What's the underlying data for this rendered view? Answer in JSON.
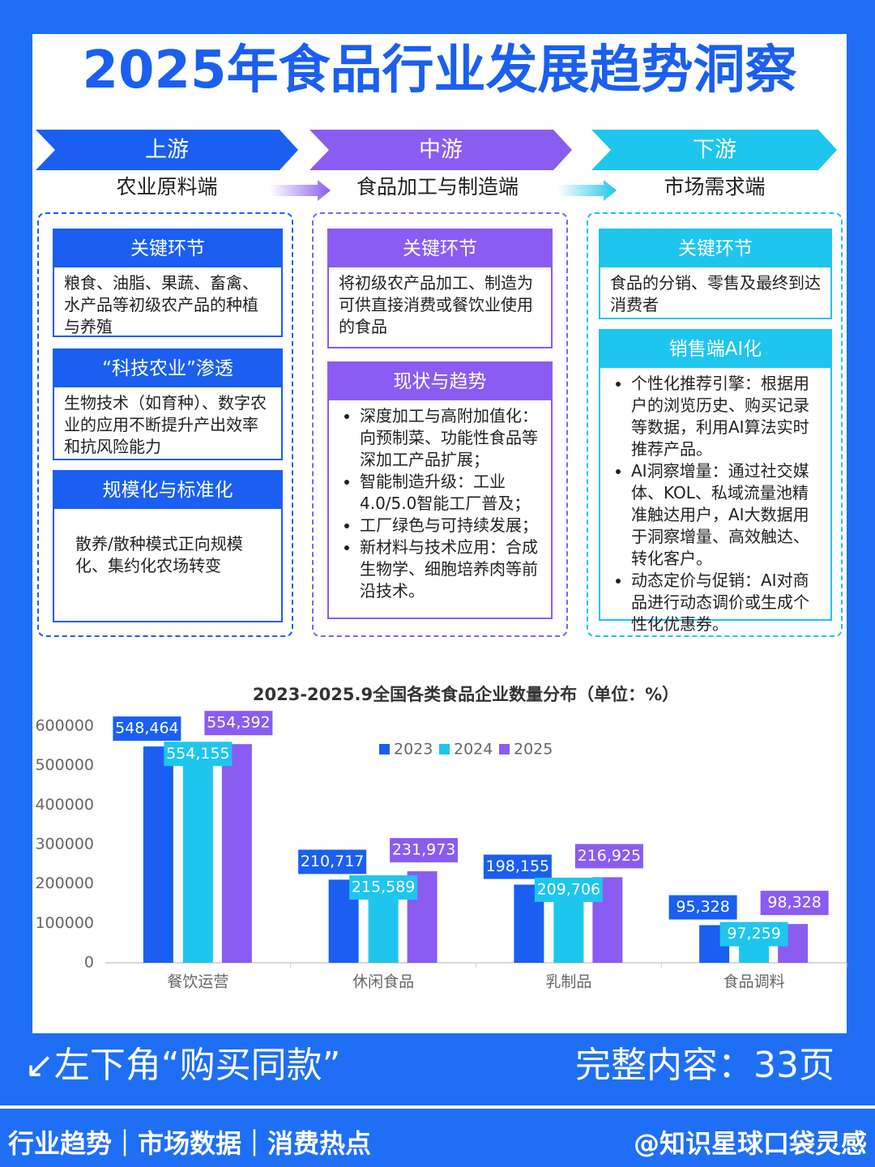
{
  "header": {
    "title": "2025年食品行业发展趋势洞察"
  },
  "stages": [
    {
      "name": "上游",
      "subtitle": "农业原料端",
      "color": "#1a5ff2",
      "boxes": [
        {
          "title": "关键环节",
          "text": "粮食、油脂、果蔬、畜禽、水产品等初级农产品的种植与养殖"
        },
        {
          "title": "“科技农业”渗透",
          "text": "生物技术（如育种）、数字农业的应用不断提升产出效率和抗风险能力"
        },
        {
          "title": "规模化与标准化",
          "text": "散养/散种模式正向规模化、集约化农场转变"
        }
      ]
    },
    {
      "name": "中游",
      "subtitle": "食品加工与制造端",
      "color": "#8a5cf2",
      "boxes": [
        {
          "title": "关键环节",
          "text": "将初级农产品加工、制造为可供直接消费或餐饮业使用的食品"
        },
        {
          "title": "现状与趋势",
          "items": [
            "深度加工与高附加值化：向预制菜、功能性食品等深加工产品扩展；",
            "智能制造升级：工业4.0/5.0智能工厂普及；",
            "工厂绿色与可持续发展；",
            "新材料与技术应用：合成生物学、细胞培养肉等前沿技术。"
          ]
        }
      ]
    },
    {
      "name": "下游",
      "subtitle": "市场需求端",
      "color": "#1ec6ee",
      "boxes": [
        {
          "title": "关键环节",
          "text": "食品的分销、零售及最终到达消费者"
        },
        {
          "title": "销售端AI化",
          "items": [
            "个性化推荐引擎：根据用户的浏览历史、购买记录等数据，利用AI算法实时推荐产品。",
            "AI洞察增量：通过社交媒体、KOL、私域流量池精准触达用户，AI大数据用于洞察增量、高效触达、转化客户。",
            "动态定价与促销：AI对商品进行动态调价或生成个性化优惠券。"
          ]
        }
      ]
    }
  ],
  "chart_data": {
    "type": "bar",
    "title": "2023-2025.9全国各类食品企业数量分布（单位：%）",
    "categories": [
      "餐饮运营",
      "休闲食品",
      "乳制品",
      "食品调料"
    ],
    "series": [
      {
        "name": "2023",
        "color": "#1a5ff2",
        "values": [
          548464,
          210717,
          198155,
          95328
        ],
        "value_labels": [
          "548,464",
          "210,717",
          "198,155",
          "95,328"
        ]
      },
      {
        "name": "2024",
        "color": "#1ec6ee",
        "values": [
          554155,
          215589,
          209706,
          97259
        ],
        "value_labels": [
          "554,155",
          "215,589",
          "209,706",
          "97,259"
        ]
      },
      {
        "name": "2025",
        "color": "#8a5cf2",
        "values": [
          554392,
          231973,
          216925,
          98328
        ],
        "value_labels": [
          "554,392",
          "231,973",
          "216,925",
          "98,328"
        ]
      }
    ],
    "ylim": [
      0,
      600000
    ],
    "yticks": [
      0,
      100000,
      200000,
      300000,
      400000,
      500000,
      600000
    ]
  },
  "footer": {
    "left": "↙左下角“购买同款”",
    "right": "完整内容：33页",
    "tags": "行业趋势｜市场数据｜消费热点",
    "account": "@知识星球口袋灵感"
  }
}
